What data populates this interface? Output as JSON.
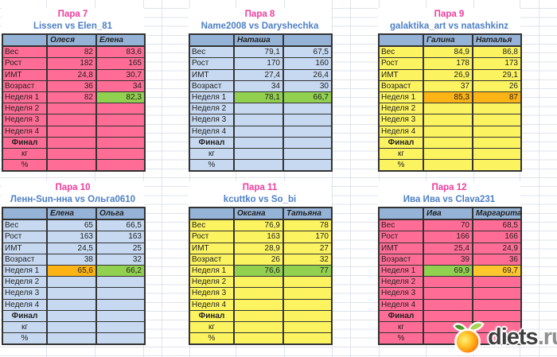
{
  "row_labels": [
    "Вес",
    "Рост",
    "ИМТ",
    "Возраст",
    "Неделя 1",
    "Неделя 2",
    "Неделя 3",
    "Неделя 4",
    "Финал",
    "кг",
    "%"
  ],
  "colors": {
    "pink": "#FF6D96",
    "blue": "#C6D9F1",
    "yellow": "#FCF360",
    "header": "#95B3D7",
    "green": "#92D050",
    "orange": "#FBB316",
    "orange_light": "#FFC62E",
    "title": "#F03C9E",
    "subtitle": "#4E80C6",
    "grid": "#DEE3EC",
    "border": "#333333"
  },
  "watermark": {
    "brand": "diets",
    "domain": ".ru",
    "icon": "apple-logo"
  },
  "pairs": [
    {
      "title": "Пара 7",
      "subtitle": "Lissen vs Elen_81",
      "theme": "pink",
      "participants": [
        "Олеся",
        "Елена"
      ],
      "rows": [
        [
          "82",
          "83,6"
        ],
        [
          "182",
          "165"
        ],
        [
          "24,8",
          "30,7"
        ],
        [
          "36",
          "34"
        ],
        [
          "82",
          "82,3"
        ],
        [
          "",
          ""
        ],
        [
          "",
          ""
        ],
        [
          "",
          ""
        ],
        [
          "",
          ""
        ],
        [
          "",
          ""
        ],
        [
          "",
          ""
        ]
      ],
      "week1_highlight": [
        "",
        "green"
      ]
    },
    {
      "title": "Пара 8",
      "subtitle": "Name2008 vs Daryshechka",
      "theme": "blue",
      "participants": [
        "Наташа",
        ""
      ],
      "rows": [
        [
          "79,1",
          "67,5"
        ],
        [
          "170",
          "160"
        ],
        [
          "27,4",
          "26,4"
        ],
        [
          "34",
          "30"
        ],
        [
          "78,1",
          "66,7"
        ],
        [
          "",
          ""
        ],
        [
          "",
          ""
        ],
        [
          "",
          ""
        ],
        [
          "",
          ""
        ],
        [
          "",
          ""
        ],
        [
          "",
          ""
        ]
      ],
      "week1_highlight": [
        "green",
        "green"
      ]
    },
    {
      "title": "Пара 9",
      "subtitle": "galaktika_art vs natashkinz",
      "theme": "yellow",
      "participants": [
        "Галина",
        "Наталья"
      ],
      "rows": [
        [
          "84,9",
          "86,8"
        ],
        [
          "178",
          "173"
        ],
        [
          "26,9",
          "29,1"
        ],
        [
          "37",
          "26"
        ],
        [
          "85,3",
          "87"
        ],
        [
          "",
          ""
        ],
        [
          "",
          ""
        ],
        [
          "",
          ""
        ],
        [
          "",
          ""
        ],
        [
          "",
          ""
        ],
        [
          "",
          ""
        ]
      ],
      "week1_highlight": [
        "orange",
        "orange"
      ]
    },
    {
      "title": "Пара 10",
      "subtitle": "Ленн-Sun-нна vs Ольга0610",
      "theme": "blue",
      "participants": [
        "Елена",
        "Ольга"
      ],
      "rows": [
        [
          "65",
          "66,5"
        ],
        [
          "163",
          "163"
        ],
        [
          "24,5",
          "25"
        ],
        [
          "38",
          "32"
        ],
        [
          "65,6",
          "66,2"
        ],
        [
          "",
          ""
        ],
        [
          "",
          ""
        ],
        [
          "",
          ""
        ],
        [
          "",
          ""
        ],
        [
          "",
          ""
        ],
        [
          "",
          ""
        ]
      ],
      "week1_highlight": [
        "orange",
        "green"
      ]
    },
    {
      "title": "Пара 11",
      "subtitle": "kcuttko vs So_bi",
      "theme": "yellow",
      "participants": [
        "Оксана",
        "Татьяна"
      ],
      "rows": [
        [
          "76,9",
          "78"
        ],
        [
          "163",
          "170"
        ],
        [
          "28,9",
          "27"
        ],
        [
          "26",
          "32"
        ],
        [
          "76,6",
          "77"
        ],
        [
          "",
          ""
        ],
        [
          "",
          ""
        ],
        [
          "",
          ""
        ],
        [
          "",
          ""
        ],
        [
          "",
          ""
        ],
        [
          "",
          ""
        ]
      ],
      "week1_highlight": [
        "green",
        "green"
      ]
    },
    {
      "title": "Пара 12",
      "subtitle": "Ива Ива vs Clava231",
      "theme": "pink",
      "participants": [
        "Ива",
        "Маргарита"
      ],
      "rows": [
        [
          "70",
          "68,5"
        ],
        [
          "166",
          "166"
        ],
        [
          "25,4",
          "24,9"
        ],
        [
          "39",
          "36"
        ],
        [
          "69,9",
          "69,7"
        ],
        [
          "",
          ""
        ],
        [
          "",
          ""
        ],
        [
          "",
          ""
        ],
        [
          "",
          ""
        ],
        [
          "",
          ""
        ],
        [
          "",
          ""
        ]
      ],
      "week1_highlight": [
        "green",
        "orange_light"
      ]
    }
  ]
}
